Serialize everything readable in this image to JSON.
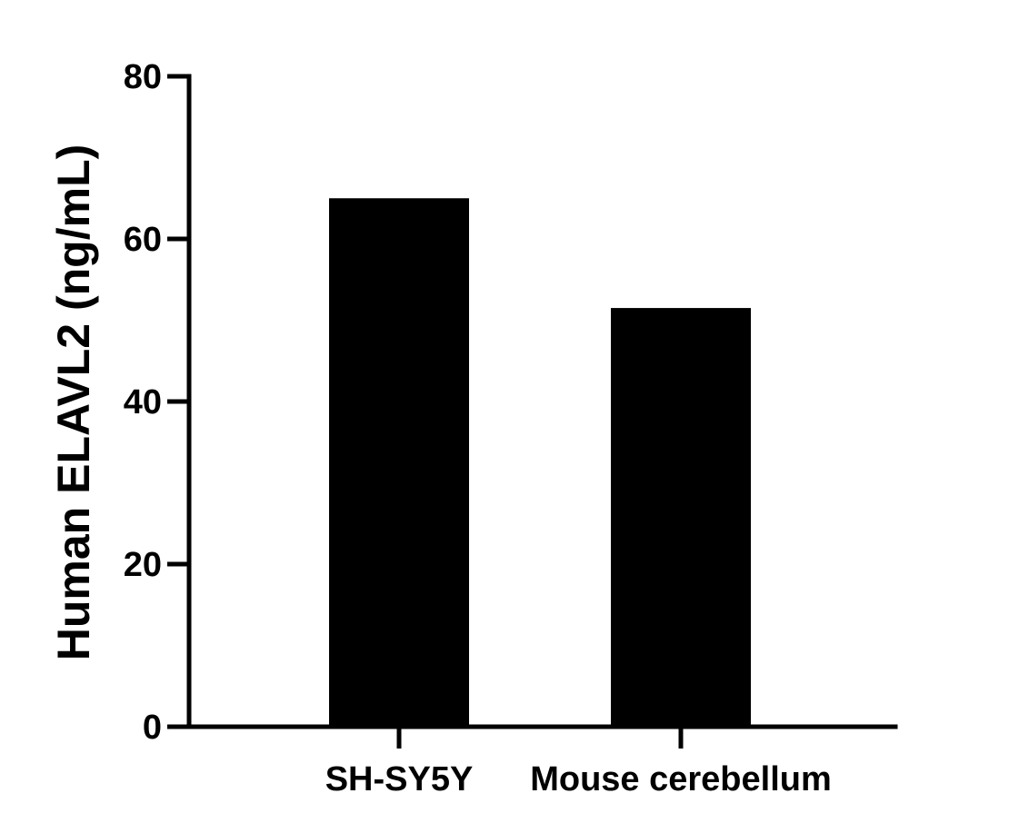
{
  "chart_data": {
    "type": "bar",
    "title": "",
    "xlabel": "",
    "ylabel": "Human ELAVL2 (ng/mL)",
    "categories": [
      "SH-SY5Y",
      "Mouse cerebellum"
    ],
    "values": [
      65,
      51.5
    ],
    "ylim": [
      0,
      80
    ],
    "yticks": [
      0,
      20,
      40,
      60,
      80
    ],
    "grid": false,
    "legend": "none",
    "bar_color": "#000000"
  }
}
